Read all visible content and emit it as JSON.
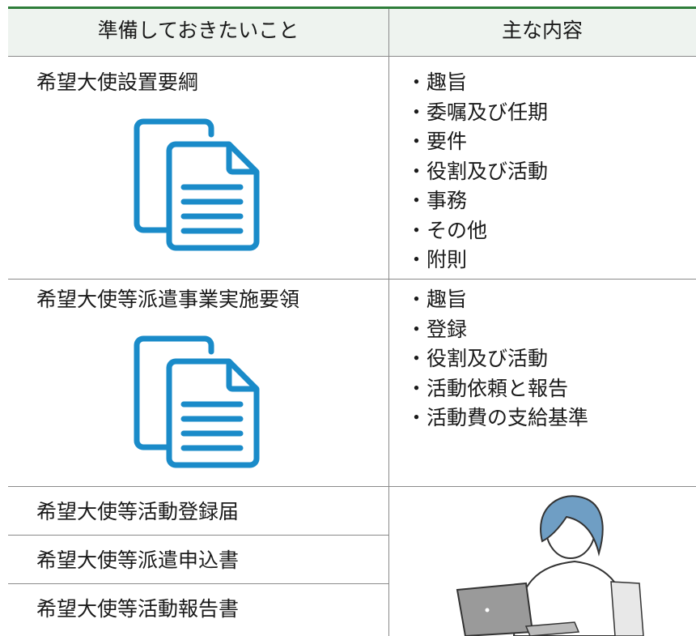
{
  "header": {
    "col1": "準備しておきたいこと",
    "col2": "主な内容"
  },
  "rows": [
    {
      "name": "希望大使設置要綱",
      "items": [
        "・趣旨",
        "・委嘱及び任期",
        "・要件",
        "・役割及び活動",
        "・事務",
        "・その他",
        "・附則"
      ]
    },
    {
      "name": "希望大使等派遣事業実施要領",
      "items": [
        "・趣旨",
        "・登録",
        "・役割及び活動",
        "・活動依頼と報告",
        "・活動費の支給基準"
      ]
    }
  ],
  "forms": [
    "希望大使等活動登録届",
    "希望大使等派遣申込書",
    "希望大使等活動報告書"
  ]
}
